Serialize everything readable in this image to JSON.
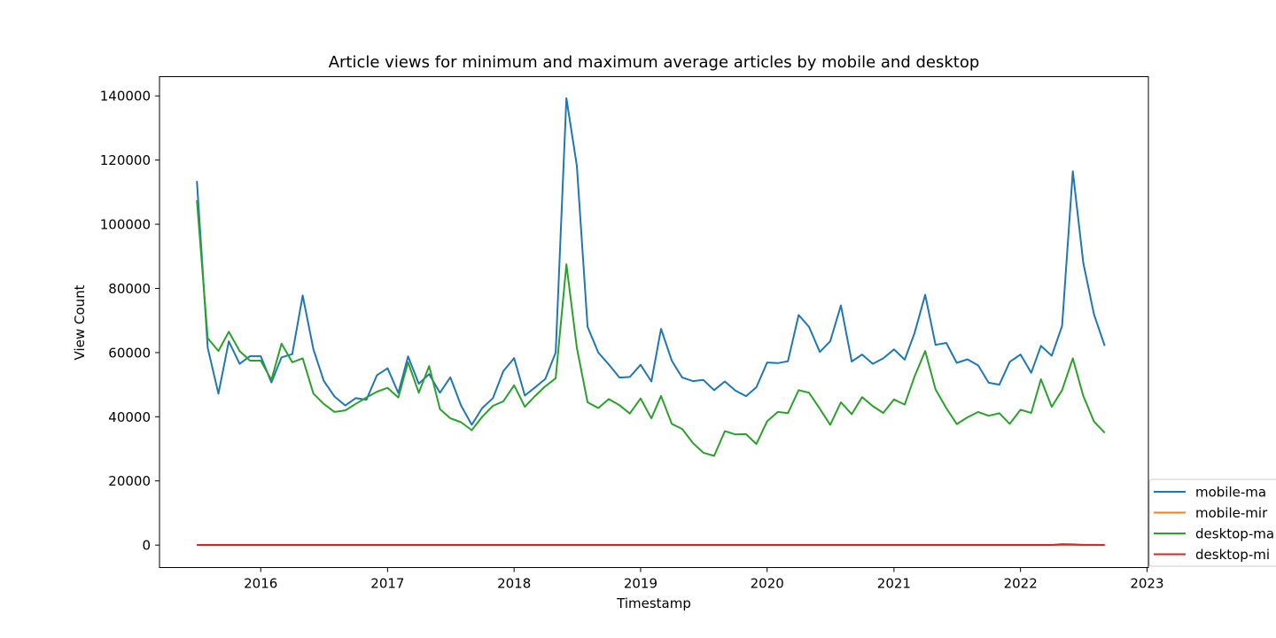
{
  "chart_data": {
    "type": "line",
    "title": "Article views for minimum and maximum average articles by mobile and desktop",
    "xlabel": "Timestamp",
    "ylabel": "View Count",
    "xlim": [
      "2015-03-15",
      "2023-01-05"
    ],
    "ylim": [
      -7000,
      146000
    ],
    "x_ticks": [
      "2016",
      "2017",
      "2018",
      "2019",
      "2020",
      "2021",
      "2022",
      "2023"
    ],
    "y_ticks": [
      0,
      20000,
      40000,
      60000,
      80000,
      100000,
      120000,
      140000
    ],
    "grid": false,
    "legend_position": "lower-right outside (clipped)",
    "x": [
      "2015-07",
      "2015-08",
      "2015-09",
      "2015-10",
      "2015-11",
      "2015-12",
      "2016-01",
      "2016-02",
      "2016-03",
      "2016-04",
      "2016-05",
      "2016-06",
      "2016-07",
      "2016-08",
      "2016-09",
      "2016-10",
      "2016-11",
      "2016-12",
      "2017-01",
      "2017-02",
      "2017-03",
      "2017-04",
      "2017-05",
      "2017-06",
      "2017-07",
      "2017-08",
      "2017-09",
      "2017-10",
      "2017-11",
      "2017-12",
      "2018-01",
      "2018-02",
      "2018-03",
      "2018-04",
      "2018-05",
      "2018-06",
      "2018-07",
      "2018-08",
      "2018-09",
      "2018-10",
      "2018-11",
      "2018-12",
      "2019-01",
      "2019-02",
      "2019-03",
      "2019-04",
      "2019-05",
      "2019-06",
      "2019-07",
      "2019-08",
      "2019-09",
      "2019-10",
      "2019-11",
      "2019-12",
      "2020-01",
      "2020-02",
      "2020-03",
      "2020-04",
      "2020-05",
      "2020-06",
      "2020-07",
      "2020-08",
      "2020-09",
      "2020-10",
      "2020-11",
      "2020-12",
      "2021-01",
      "2021-02",
      "2021-03",
      "2021-04",
      "2021-05",
      "2021-06",
      "2021-07",
      "2021-08",
      "2021-09",
      "2021-10",
      "2021-11",
      "2021-12",
      "2022-01",
      "2022-02",
      "2022-03",
      "2022-04",
      "2022-05",
      "2022-06",
      "2022-07",
      "2022-08",
      "2022-09"
    ],
    "series": [
      {
        "name": "mobile-ma",
        "color": "#1f77b4",
        "values": [
          113500,
          61500,
          47200,
          63500,
          56500,
          58900,
          58900,
          50700,
          58500,
          59500,
          77800,
          61000,
          51200,
          46300,
          43500,
          45800,
          45300,
          52900,
          55100,
          47400,
          58800,
          50300,
          53300,
          47500,
          52300,
          43500,
          37500,
          42700,
          45800,
          54200,
          58300,
          46600,
          49000,
          51800,
          60000,
          139300,
          118200,
          68000,
          60000,
          56300,
          52200,
          52400,
          56200,
          51000,
          67400,
          57500,
          52200,
          51100,
          51500,
          48300,
          51000,
          48200,
          46400,
          49200,
          56900,
          56700,
          57300,
          71700,
          68000,
          60200,
          63500,
          74700,
          57200,
          59400,
          56500,
          58200,
          61000,
          57800,
          66000,
          78000,
          62400,
          63000,
          56800,
          57900,
          56000,
          50600,
          50000,
          57100,
          59400,
          53700,
          62100,
          59000,
          68300,
          116500,
          88000,
          71900,
          62100
        ]
      },
      {
        "name": "mobile-mir",
        "color": "#ff7f0e",
        "values": [
          5,
          8,
          5,
          6,
          5,
          5,
          5,
          5,
          6,
          5,
          5,
          5,
          5,
          5,
          5,
          5,
          5,
          5,
          5,
          5,
          5,
          5,
          5,
          5,
          5,
          5,
          5,
          5,
          5,
          5,
          5,
          5,
          5,
          5,
          5,
          5,
          5,
          5,
          5,
          5,
          5,
          5,
          5,
          5,
          5,
          5,
          5,
          5,
          5,
          5,
          5,
          5,
          5,
          5,
          5,
          5,
          5,
          5,
          5,
          5,
          5,
          5,
          5,
          5,
          5,
          5,
          5,
          5,
          5,
          5,
          5,
          5,
          5,
          5,
          5,
          5,
          5,
          5,
          5,
          5,
          5,
          5,
          5,
          5,
          5,
          5,
          5
        ]
      },
      {
        "name": "desktop-ma",
        "color": "#2ca02c",
        "values": [
          107500,
          64500,
          60500,
          66500,
          60500,
          57500,
          57500,
          51500,
          62800,
          57000,
          58200,
          47200,
          44000,
          41500,
          42000,
          44000,
          46000,
          47800,
          49000,
          46000,
          57000,
          47500,
          55800,
          42400,
          39500,
          38300,
          35800,
          40000,
          43400,
          44800,
          49800,
          43100,
          46300,
          49500,
          52000,
          87500,
          61500,
          44500,
          42700,
          45500,
          43600,
          41000,
          45700,
          39500,
          46500,
          37800,
          36200,
          31800,
          28800,
          27800,
          35500,
          34500,
          34600,
          31500,
          38600,
          41500,
          41100,
          48300,
          47500,
          42500,
          37500,
          44500,
          40800,
          46100,
          43300,
          41200,
          45400,
          43800,
          52500,
          60500,
          48500,
          42700,
          37700,
          39800,
          41500,
          40300,
          41100,
          37800,
          42200,
          41200,
          51700,
          43100,
          48300,
          58200,
          46500,
          38500,
          35000
        ]
      },
      {
        "name": "desktop-mi",
        "color": "#d62728",
        "values": [
          50,
          40,
          30,
          40,
          30,
          30,
          30,
          30,
          30,
          30,
          30,
          30,
          30,
          30,
          30,
          30,
          30,
          30,
          30,
          30,
          30,
          30,
          30,
          30,
          30,
          30,
          30,
          30,
          30,
          30,
          30,
          30,
          30,
          30,
          30,
          30,
          30,
          30,
          30,
          30,
          30,
          30,
          30,
          30,
          30,
          30,
          30,
          30,
          30,
          30,
          30,
          30,
          30,
          30,
          30,
          30,
          30,
          30,
          30,
          30,
          30,
          30,
          30,
          30,
          30,
          30,
          30,
          30,
          30,
          30,
          30,
          30,
          30,
          30,
          30,
          30,
          30,
          30,
          30,
          30,
          30,
          30,
          300,
          200,
          80,
          60,
          50
        ]
      }
    ]
  }
}
